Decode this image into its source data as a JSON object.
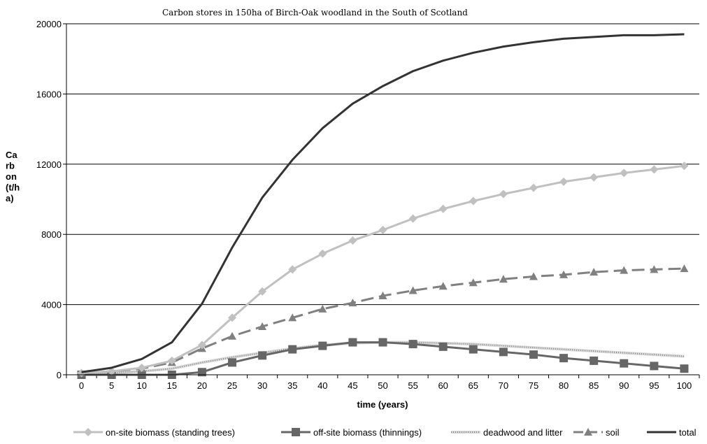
{
  "chart_data": {
    "type": "line",
    "title": "Carbon stores in 150ha of Birch-Oak woodland in the South of Scotland",
    "xlabel": "time (years)",
    "ylabel_lines": [
      "Ca",
      "rb",
      "on",
      "(t/h",
      "a)"
    ],
    "x": [
      0,
      5,
      10,
      15,
      20,
      25,
      30,
      35,
      40,
      45,
      50,
      55,
      60,
      65,
      70,
      75,
      80,
      85,
      90,
      95,
      100
    ],
    "ylim": [
      0,
      20000
    ],
    "yticks": [
      0,
      4000,
      8000,
      12000,
      16000,
      20000
    ],
    "grid": true,
    "legend_position": "bottom",
    "series": [
      {
        "name": "on-site biomass (standing trees)",
        "color": "#c0c0c0",
        "marker": "diamond",
        "style": "solid",
        "values": [
          100,
          200,
          400,
          800,
          1700,
          3250,
          4750,
          6000,
          6900,
          7650,
          8250,
          8900,
          9450,
          9900,
          10300,
          10650,
          11000,
          11250,
          11500,
          11700,
          11900
        ]
      },
      {
        "name": "off-site biomass (thinnings)",
        "color": "#666666",
        "marker": "square",
        "style": "solid",
        "values": [
          0,
          0,
          0,
          0,
          150,
          700,
          1100,
          1450,
          1650,
          1850,
          1850,
          1750,
          1600,
          1450,
          1300,
          1150,
          950,
          800,
          650,
          500,
          350
        ]
      },
      {
        "name": "deadwood and litter",
        "color": "#bdbdbd",
        "marker": "none",
        "style": "textured",
        "values": [
          0,
          100,
          200,
          350,
          700,
          1000,
          1250,
          1500,
          1700,
          1800,
          1850,
          1850,
          1800,
          1750,
          1650,
          1550,
          1450,
          1350,
          1250,
          1150,
          1050
        ]
      },
      {
        "name": "soil",
        "color": "#808080",
        "marker": "triangle",
        "style": "dashed",
        "values": [
          100,
          200,
          350,
          700,
          1500,
          2200,
          2750,
          3250,
          3750,
          4100,
          4500,
          4800,
          5050,
          5250,
          5450,
          5600,
          5700,
          5850,
          5950,
          6000,
          6050
        ]
      },
      {
        "name": "total",
        "color": "#333333",
        "marker": "none",
        "style": "solid",
        "values": [
          150,
          400,
          900,
          1850,
          4050,
          7250,
          10100,
          12250,
          14050,
          15450,
          16450,
          17300,
          17900,
          18350,
          18700,
          18950,
          19150,
          19250,
          19350,
          19350,
          19400
        ]
      }
    ]
  }
}
